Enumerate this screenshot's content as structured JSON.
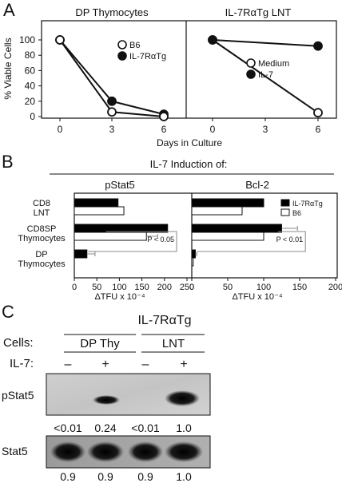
{
  "panel_a": {
    "letter": "A",
    "ylabel": "% Viable Cells",
    "xlabel": "Days in Culture",
    "yticks": [
      "0",
      "20",
      "40",
      "60",
      "80",
      "100"
    ],
    "xticks": [
      "0",
      "3",
      "6"
    ],
    "left": {
      "title": "DP Thymocytes",
      "legend": [
        {
          "name": "B6",
          "marker": "open-circle"
        },
        {
          "name": "IL-7RαTg",
          "marker": "filled-circle"
        }
      ]
    },
    "right": {
      "title": "IL-7RαTg LNT",
      "legend": [
        {
          "name": "Medium",
          "marker": "open-circle"
        },
        {
          "name": "IL-7",
          "marker": "filled-circle"
        }
      ]
    }
  },
  "panel_b": {
    "letter": "B",
    "header": "IL-7 Induction of:",
    "xlabel": "ΔTFU x 10⁻⁴",
    "categories": [
      "CD8\nLNT",
      "CD8SP\nThymocytes",
      "DP\nThymocytes"
    ],
    "left": {
      "title": "pStat5",
      "xticks": [
        "0",
        "50",
        "100",
        "150",
        "200",
        "250"
      ],
      "pvalue": "P < 0.05"
    },
    "right": {
      "title": "Bcl-2",
      "xticks": [
        "0",
        "50",
        "100",
        "150",
        "200"
      ],
      "pvalue": "P < 0.01",
      "legend": [
        {
          "name": "IL-7RαTg",
          "fill": "#000000"
        },
        {
          "name": "B6",
          "fill": "#ffffff"
        }
      ]
    }
  },
  "panel_c": {
    "letter": "C",
    "title": "IL-7RαTg",
    "cells_label": "Cells:",
    "il7_label": "IL-7:",
    "groups": [
      "DP Thy",
      "LNT"
    ],
    "lanes": [
      "–",
      "+",
      "–",
      "+"
    ],
    "blots": [
      {
        "label": "pStat5",
        "values": [
          "<0.01",
          "0.24",
          "<0.01",
          "1.0"
        ]
      },
      {
        "label": "Stat5",
        "values": [
          "0.9",
          "0.9",
          "0.9",
          "1.0"
        ]
      }
    ]
  },
  "chart_data": [
    {
      "type": "line",
      "title": "DP Thymocytes",
      "xlabel": "Days in Culture",
      "ylabel": "% Viable Cells",
      "x": [
        0,
        3,
        6
      ],
      "xlim": [
        0,
        6
      ],
      "ylim": [
        0,
        100
      ],
      "series": [
        {
          "name": "B6",
          "values": [
            100,
            6,
            0
          ]
        },
        {
          "name": "IL-7RαTg",
          "values": [
            100,
            20,
            3
          ]
        }
      ]
    },
    {
      "type": "line",
      "title": "IL-7RαTg LNT",
      "xlabel": "Days in Culture",
      "ylabel": "% Viable Cells",
      "x": [
        0,
        3,
        6
      ],
      "xlim": [
        0,
        6
      ],
      "ylim": [
        0,
        100
      ],
      "series": [
        {
          "name": "Medium",
          "x": [
            0,
            6
          ],
          "values": [
            100,
            5
          ]
        },
        {
          "name": "IL-7",
          "x": [
            0,
            6
          ],
          "values": [
            100,
            92
          ]
        }
      ]
    },
    {
      "type": "bar",
      "orientation": "horizontal",
      "title": "pStat5",
      "categories": [
        "CD8 LNT",
        "CD8SP Thymocytes",
        "DP Thymocytes"
      ],
      "xlim": [
        0,
        250
      ],
      "series": [
        {
          "name": "IL-7RαTg",
          "values": [
            97,
            207,
            28
          ],
          "errors": [
            0,
            0,
            18
          ]
        },
        {
          "name": "B6",
          "values": [
            110,
            160,
            0
          ],
          "errors": [
            0,
            25,
            0
          ]
        }
      ],
      "annotation": "P < 0.05"
    },
    {
      "type": "bar",
      "orientation": "horizontal",
      "title": "Bcl-2",
      "categories": [
        "CD8 LNT",
        "CD8SP Thymocytes",
        "DP Thymocytes"
      ],
      "xlim": [
        0,
        200
      ],
      "series": [
        {
          "name": "IL-7RαTg",
          "values": [
            100,
            125,
            5
          ],
          "errors": [
            0,
            22,
            2
          ]
        },
        {
          "name": "B6",
          "values": [
            70,
            100,
            2
          ],
          "errors": [
            0,
            0,
            0
          ]
        }
      ],
      "annotation": "P < 0.01"
    }
  ]
}
